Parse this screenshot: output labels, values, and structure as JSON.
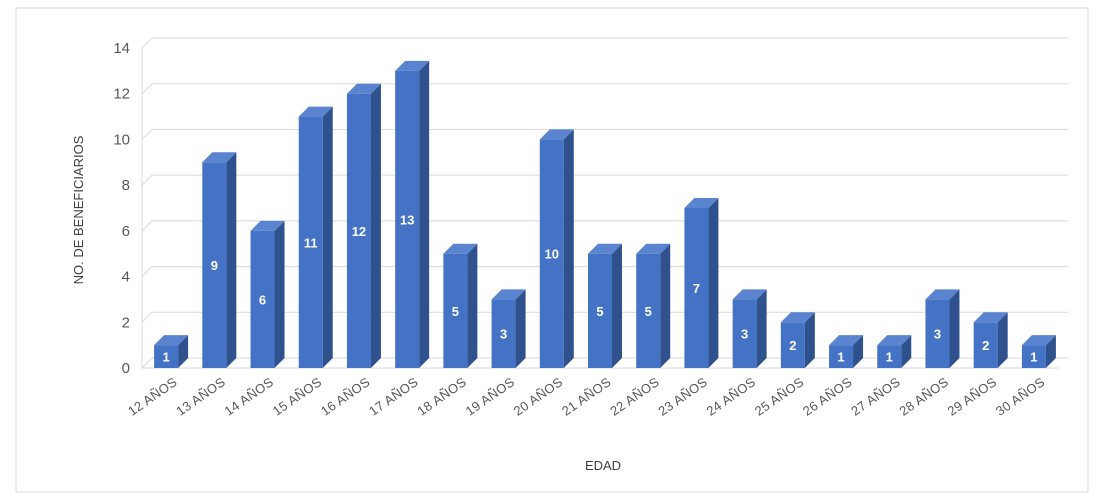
{
  "chart_data": {
    "type": "bar",
    "categories": [
      "12 AÑOS",
      "13 AÑOS",
      "14 AÑOS",
      "15 AÑOS",
      "16 AÑOS",
      "17 AÑOS",
      "18 AÑOS",
      "19 AÑOS",
      "20 AÑOS",
      "21 AÑOS",
      "22 AÑOS",
      "23 AÑOS",
      "24 AÑOS",
      "25 AÑOS",
      "26 AÑOS",
      "27 AÑOS",
      "28 AÑOS",
      "29 AÑOS",
      "30 AÑOS"
    ],
    "values": [
      1,
      9,
      6,
      11,
      12,
      13,
      5,
      3,
      10,
      5,
      5,
      7,
      3,
      2,
      1,
      1,
      3,
      2,
      1
    ],
    "data_labels": [
      "1",
      "9",
      "6",
      "11",
      "12",
      "13",
      "5",
      "3",
      "10",
      "5",
      "5",
      "7",
      "3",
      "2",
      "1",
      "1",
      "3",
      "2",
      "1"
    ],
    "xlabel": "EDAD",
    "ylabel": "NO. DE BENEFICIARIOS",
    "ylim": [
      0,
      14
    ],
    "yticks": [
      "0",
      "2",
      "4",
      "6",
      "8",
      "10",
      "12",
      "14"
    ],
    "grid": true,
    "legend": "none",
    "style": "3d-columns",
    "colors": {
      "bar_front": "#4472C4",
      "bar_side": "#2F528F",
      "bar_top": "#5B84D0",
      "grid": "#D9D9D9",
      "text": "#595959"
    }
  }
}
